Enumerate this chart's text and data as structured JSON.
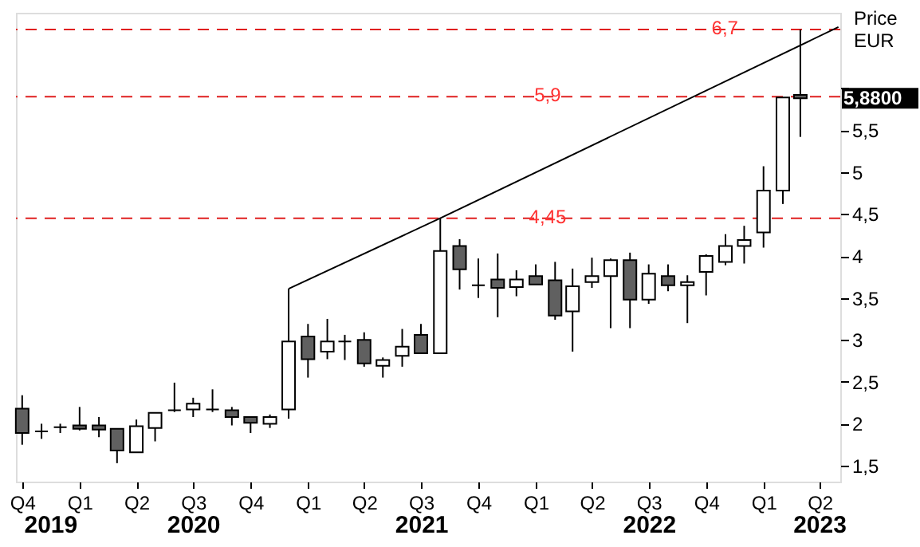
{
  "chart_data": {
    "type": "candlestick",
    "x": [
      "2019-10",
      "2019-11",
      "2019-12",
      "2020-01",
      "2020-02",
      "2020-03",
      "2020-04",
      "2020-05",
      "2020-06",
      "2020-07",
      "2020-08",
      "2020-09",
      "2020-10",
      "2020-11",
      "2020-12",
      "2021-01",
      "2021-02",
      "2021-03",
      "2021-04",
      "2021-05",
      "2021-06",
      "2021-07",
      "2021-08",
      "2021-09",
      "2021-10",
      "2021-11",
      "2021-12",
      "2022-01",
      "2022-02",
      "2022-03",
      "2022-04",
      "2022-05",
      "2022-06",
      "2022-07",
      "2022-08",
      "2022-09",
      "2022-10",
      "2022-11",
      "2022-12",
      "2023-01",
      "2023-02",
      "2023-03"
    ],
    "ohlc": [
      [
        2.18,
        2.34,
        1.75,
        1.89
      ],
      [
        1.91,
        2.0,
        1.82,
        1.91
      ],
      [
        1.96,
        2.0,
        1.89,
        1.96
      ],
      [
        1.98,
        2.2,
        1.92,
        1.94
      ],
      [
        1.98,
        2.08,
        1.84,
        1.93
      ],
      [
        1.94,
        1.94,
        1.53,
        1.68
      ],
      [
        1.66,
        2.05,
        1.66,
        1.97
      ],
      [
        1.95,
        2.13,
        1.79,
        2.13
      ],
      [
        2.16,
        2.49,
        2.14,
        2.16
      ],
      [
        2.17,
        2.31,
        2.08,
        2.24
      ],
      [
        2.17,
        2.41,
        2.14,
        2.17
      ],
      [
        2.16,
        2.2,
        1.98,
        2.08
      ],
      [
        2.08,
        2.08,
        1.89,
        2.01
      ],
      [
        2.0,
        2.11,
        1.95,
        2.08
      ],
      [
        2.17,
        3.61,
        2.06,
        2.98
      ],
      [
        3.04,
        3.19,
        2.55,
        2.77
      ],
      [
        2.86,
        3.25,
        2.77,
        2.98
      ],
      [
        2.98,
        3.06,
        2.76,
        2.98
      ],
      [
        3.0,
        3.09,
        2.68,
        2.72
      ],
      [
        2.69,
        2.79,
        2.55,
        2.76
      ],
      [
        2.81,
        3.13,
        2.68,
        2.92
      ],
      [
        3.06,
        3.19,
        2.84,
        2.84
      ],
      [
        2.84,
        4.45,
        2.84,
        4.06
      ],
      [
        4.12,
        4.2,
        3.6,
        3.84
      ],
      [
        3.65,
        3.97,
        3.5,
        3.65
      ],
      [
        3.72,
        4.03,
        3.27,
        3.62
      ],
      [
        3.63,
        3.83,
        3.52,
        3.72
      ],
      [
        3.76,
        3.9,
        3.66,
        3.66
      ],
      [
        3.71,
        3.93,
        3.24,
        3.29
      ],
      [
        3.34,
        3.85,
        2.86,
        3.64
      ],
      [
        3.69,
        3.98,
        3.62,
        3.76
      ],
      [
        3.76,
        3.97,
        3.14,
        3.95
      ],
      [
        3.95,
        4.04,
        3.14,
        3.48
      ],
      [
        3.48,
        3.9,
        3.43,
        3.79
      ],
      [
        3.76,
        3.9,
        3.58,
        3.65
      ],
      [
        3.65,
        3.77,
        3.2,
        3.69
      ],
      [
        3.81,
        4.02,
        3.53,
        4.0
      ],
      [
        3.93,
        4.26,
        3.89,
        4.12
      ],
      [
        4.12,
        4.36,
        3.91,
        4.19
      ],
      [
        4.28,
        5.07,
        4.1,
        4.78
      ],
      [
        4.78,
        5.89,
        4.62,
        5.89
      ],
      [
        5.92,
        6.7,
        5.42,
        5.88
      ]
    ],
    "colors": [
      "#606060",
      "#000000",
      "#000000",
      "#606060",
      "#606060",
      "#606060",
      "#ffffff",
      "#ffffff",
      "#000000",
      "#ffffff",
      "#000000",
      "#606060",
      "#606060",
      "#ffffff",
      "#ffffff",
      "#606060",
      "#ffffff",
      "#000000",
      "#606060",
      "#ffffff",
      "#ffffff",
      "#606060",
      "#ffffff",
      "#606060",
      "#000000",
      "#606060",
      "#ffffff",
      "#606060",
      "#606060",
      "#ffffff",
      "#ffffff",
      "#ffffff",
      "#606060",
      "#ffffff",
      "#606060",
      "#ffffff",
      "#ffffff",
      "#ffffff",
      "#ffffff",
      "#ffffff",
      "#ffffff",
      "#606060"
    ],
    "series": [
      {
        "type": "line",
        "color": "#000000",
        "x": [
          "2020-12",
          "2021-08",
          "2023-05"
        ],
        "values": [
          3.61,
          4.45,
          6.73
        ]
      }
    ],
    "ylabel": "Price EUR",
    "ylim": [
      1.31,
      6.9
    ],
    "yticks": [
      {
        "value": 1.5,
        "label": "1,5"
      },
      2,
      {
        "value": 2.5,
        "label": "2,5"
      },
      3,
      {
        "value": 3.5,
        "label": "3,5"
      },
      4,
      {
        "value": 4.5,
        "label": "4,5"
      },
      5,
      {
        "value": 5.5,
        "label": "5,5"
      },
      {
        "value": 6,
        "label": null
      }
    ],
    "xlim": [
      "2019-09-21",
      "2023-05-04"
    ],
    "xticks": [
      {
        "value": "2019-10",
        "label": "Q4"
      },
      {
        "value": "2020-01",
        "label": "Q1"
      },
      {
        "value": "2020-04",
        "label": "Q2"
      },
      {
        "value": "2020-07",
        "label": "Q3"
      },
      {
        "value": "2020-10",
        "label": "Q4"
      },
      {
        "value": "2021-01",
        "label": "Q1"
      },
      {
        "value": "2021-04",
        "label": "Q2"
      },
      {
        "value": "2021-07",
        "label": "Q3"
      },
      {
        "value": "2021-10",
        "label": "Q4"
      },
      {
        "value": "2022-01",
        "label": "Q1"
      },
      {
        "value": "2022-04",
        "label": "Q2"
      },
      {
        "value": "2022-07",
        "label": "Q3"
      },
      {
        "value": "2022-10",
        "label": "Q4"
      },
      {
        "value": "2023-01",
        "label": "Q1"
      },
      {
        "value": "2023-04",
        "label": "Q2"
      }
    ],
    "ref_lines": [
      {
        "axis": "y",
        "value": 6.7,
        "label": "6,7",
        "color": "#e02020",
        "line_style": "dashed"
      },
      {
        "axis": "y",
        "value": 5.9,
        "label": "5,9",
        "color": "#e02020",
        "line_style": "dashed"
      },
      {
        "axis": "y",
        "value": 4.45,
        "label": "4,45",
        "color": "#e02020",
        "line_style": "dashed"
      }
    ],
    "annotations": [
      "2019",
      "2020",
      "2021",
      "2022",
      "2023",
      {
        "text": "5,8800",
        "x": "2023-03",
        "y": 5.88
      }
    ],
    "grid": false
  }
}
